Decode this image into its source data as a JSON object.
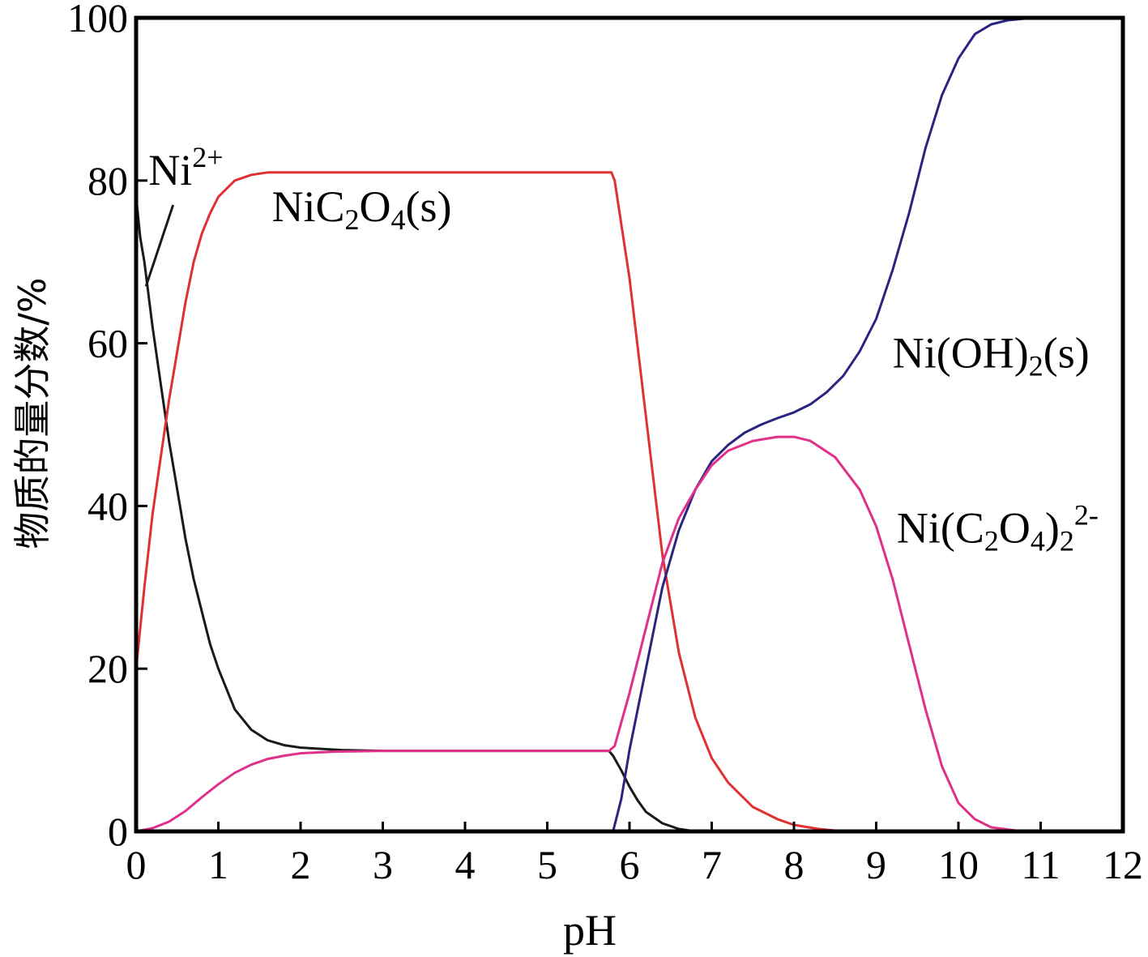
{
  "chart_data": {
    "type": "line",
    "xlabel": "pH",
    "ylabel": "物质的量分数/%",
    "xlim": [
      0,
      12
    ],
    "ylim": [
      0,
      100
    ],
    "xticks": [
      0,
      1,
      2,
      3,
      4,
      5,
      6,
      7,
      8,
      9,
      10,
      11,
      12
    ],
    "yticks": [
      0,
      20,
      40,
      60,
      80,
      100
    ],
    "grid": false,
    "colors": {
      "ni2": "#1a1a1a",
      "nic2o4": "#e03030",
      "nioh2": "#2a2580",
      "nic2o42": "#e0308a"
    },
    "series": [
      {
        "name": "Ni2+",
        "color": "#1a1a1a",
        "x": [
          0.0,
          0.05,
          0.1,
          0.2,
          0.3,
          0.4,
          0.5,
          0.6,
          0.7,
          0.8,
          0.9,
          1.0,
          1.2,
          1.4,
          1.6,
          1.8,
          2.0,
          2.5,
          3.0,
          4.0,
          5.0,
          5.75,
          5.8,
          5.9,
          6.0,
          6.1,
          6.2,
          6.4,
          6.6,
          6.8
        ],
        "y": [
          78,
          73,
          70,
          62,
          55,
          48,
          42,
          36,
          31,
          27,
          23,
          20,
          15,
          12.5,
          11.2,
          10.6,
          10.3,
          10.0,
          9.9,
          9.9,
          9.9,
          9.9,
          9.3,
          7.5,
          5.5,
          3.8,
          2.4,
          1.0,
          0.3,
          0.0
        ]
      },
      {
        "name": "NiC2O4(s)",
        "color": "#e03030",
        "x": [
          0.0,
          0.1,
          0.2,
          0.3,
          0.4,
          0.5,
          0.6,
          0.7,
          0.8,
          0.9,
          1.0,
          1.2,
          1.4,
          1.6,
          1.8,
          2.0,
          3.0,
          4.0,
          5.0,
          5.78,
          5.82,
          6.0,
          6.2,
          6.4,
          6.6,
          6.8,
          7.0,
          7.2,
          7.5,
          7.8,
          8.0,
          8.3,
          8.5,
          8.8
        ],
        "y": [
          20,
          30,
          39,
          46,
          53,
          59,
          65,
          70,
          73.5,
          76,
          78,
          80,
          80.7,
          81,
          81,
          81,
          81,
          81,
          81,
          81,
          80,
          68,
          51,
          34,
          22,
          14,
          9,
          6,
          3,
          1.5,
          0.8,
          0.3,
          0.1,
          0.0
        ]
      },
      {
        "name": "Ni(OH)2(s)",
        "color": "#2a2580",
        "x": [
          5.8,
          5.9,
          6.0,
          6.2,
          6.4,
          6.6,
          6.8,
          7.0,
          7.2,
          7.4,
          7.6,
          7.8,
          8.0,
          8.2,
          8.4,
          8.6,
          8.8,
          9.0,
          9.2,
          9.4,
          9.6,
          9.8,
          10.0,
          10.2,
          10.4,
          10.6,
          10.8,
          11.0,
          11.5,
          12.0
        ],
        "y": [
          0,
          4,
          10,
          20,
          30,
          37,
          42,
          45.5,
          47.5,
          49,
          50,
          50.8,
          51.5,
          52.5,
          54,
          56,
          59,
          63,
          69,
          76,
          84,
          90.5,
          95,
          98,
          99.2,
          99.7,
          99.9,
          100,
          100,
          100
        ]
      },
      {
        "name": "Ni(C2O4)2 2-",
        "color": "#e0308a",
        "x": [
          0.0,
          0.2,
          0.4,
          0.6,
          0.8,
          1.0,
          1.2,
          1.4,
          1.6,
          1.8,
          2.0,
          2.4,
          3.0,
          4.0,
          5.0,
          5.75,
          5.82,
          6.0,
          6.2,
          6.4,
          6.6,
          6.8,
          7.0,
          7.2,
          7.5,
          7.8,
          8.0,
          8.2,
          8.5,
          8.8,
          9.0,
          9.2,
          9.4,
          9.6,
          9.8,
          10.0,
          10.2,
          10.4,
          10.7,
          11.0
        ],
        "y": [
          0,
          0.4,
          1.2,
          2.5,
          4.2,
          5.8,
          7.2,
          8.2,
          8.9,
          9.3,
          9.6,
          9.8,
          9.9,
          9.9,
          9.9,
          9.9,
          10.5,
          17,
          25,
          33,
          38.5,
          42,
          45,
          46.8,
          48,
          48.5,
          48.5,
          48,
          46,
          42,
          37.5,
          31,
          23,
          15,
          8,
          3.5,
          1.5,
          0.5,
          0.1,
          0
        ]
      }
    ],
    "annotations": [
      {
        "base": "Ni",
        "sup": "2+",
        "pos_pH": 0.15,
        "pos_pct": 79.5
      },
      {
        "base": "NiC",
        "sub1": "2",
        "mid": "O",
        "sub2": "4",
        "tail": "(s)",
        "pos_pH": 1.65,
        "pos_pct": 75
      },
      {
        "base": "Ni(OH)",
        "sub1": "2",
        "tail": "(s)",
        "pos_pH": 9.2,
        "pos_pct": 57
      },
      {
        "base": "Ni(C",
        "sub1": "2",
        "mid": "O",
        "sub2": "4",
        "tail": ")",
        "sub3": "2",
        "sup": "2-",
        "pos_pH": 9.25,
        "pos_pct": 35.5
      }
    ]
  }
}
